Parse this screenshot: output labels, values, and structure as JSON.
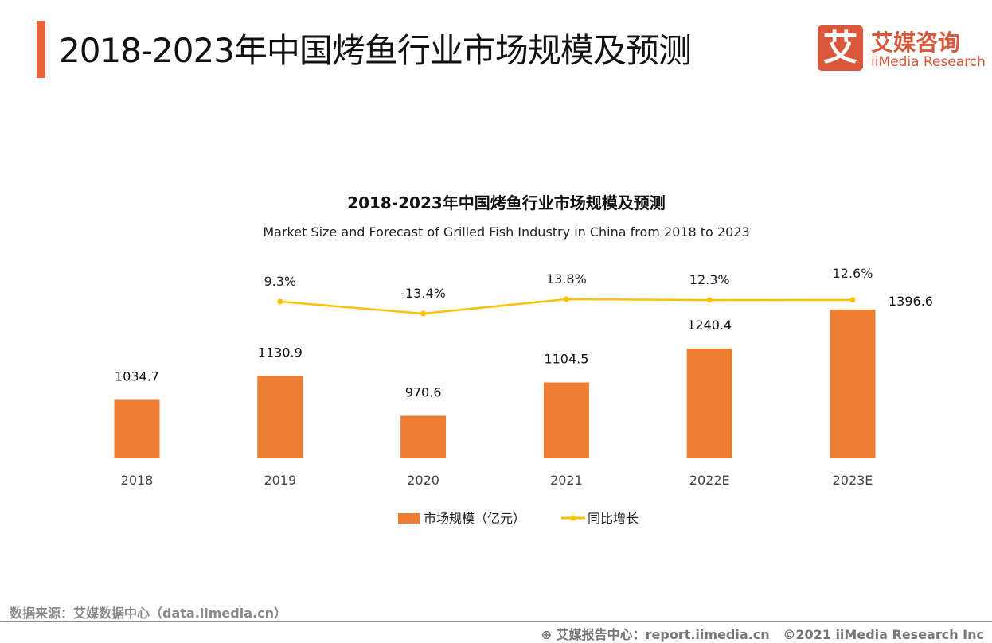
{
  "header": {
    "title": "2018-2023年中国烤鱼行业市场规模及预测"
  },
  "logo": {
    "mark": "艾",
    "cn": "艾媒咨询",
    "en": "iiMedia Research"
  },
  "footer": {
    "source": "数据来源：艾媒数据中心（data.iimedia.cn）",
    "report": "艾媒报告中心：report.iimedia.cn",
    "copyright": "©2021  iiMedia Research  Inc"
  },
  "colors": {
    "bar": "#ed7d31",
    "line": "#ffc000",
    "accent": "#e8643a"
  },
  "chart_data": {
    "type": "bar+line",
    "title": "2018-2023年中国烤鱼行业市场规模及预测",
    "subtitle": "Market Size and Forecast of Grilled Fish Industry in China from 2018 to 2023",
    "categories": [
      "2018",
      "2019",
      "2020",
      "2021",
      "2022E",
      "2023E"
    ],
    "series": [
      {
        "name": "市场规模（亿元）",
        "type": "bar",
        "values": [
          1034.7,
          1130.9,
          970.6,
          1104.5,
          1240.4,
          1396.6
        ],
        "labels": [
          "1034.7",
          "1130.9",
          "970.6",
          "1104.5",
          "1240.4",
          "1396.6"
        ]
      },
      {
        "name": "同比增长",
        "type": "line",
        "values": [
          null,
          9.3,
          -13.4,
          13.8,
          12.3,
          12.6
        ],
        "labels": [
          "",
          "9.3%",
          "-13.4%",
          "13.8%",
          "12.3%",
          "12.6%"
        ]
      }
    ],
    "legend": "bottom",
    "grid": false
  }
}
